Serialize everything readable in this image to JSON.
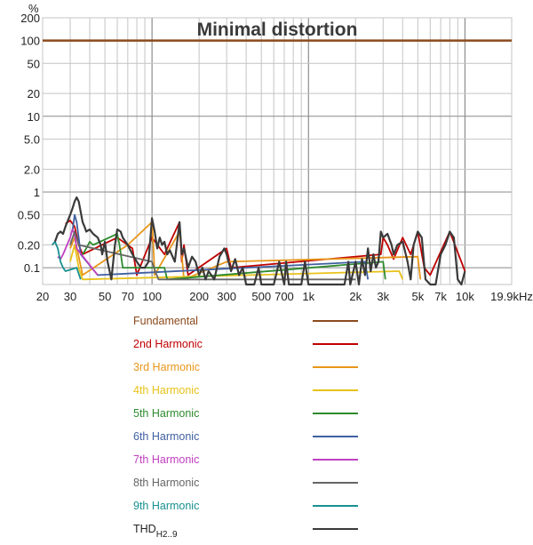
{
  "chart_data": {
    "type": "line",
    "title": "Minimal distortion",
    "ylabel": "%",
    "xlabel": "",
    "x_scale": "log",
    "y_scale": "log",
    "xlim": [
      20,
      19900
    ],
    "ylim": [
      0.06,
      200
    ],
    "x_ticks": [
      {
        "value": 20,
        "label": "20"
      },
      {
        "value": 30,
        "label": "30"
      },
      {
        "value": 50,
        "label": "50"
      },
      {
        "value": 70,
        "label": "70"
      },
      {
        "value": 100,
        "label": "100"
      },
      {
        "value": 200,
        "label": "200"
      },
      {
        "value": 300,
        "label": "300"
      },
      {
        "value": 500,
        "label": "500"
      },
      {
        "value": 700,
        "label": "700"
      },
      {
        "value": 1000,
        "label": "1k"
      },
      {
        "value": 2000,
        "label": "2k"
      },
      {
        "value": 3000,
        "label": "3k"
      },
      {
        "value": 5000,
        "label": "5k"
      },
      {
        "value": 7000,
        "label": "7k"
      },
      {
        "value": 10000,
        "label": "10k"
      },
      {
        "value": 19900,
        "label": "19.9kHz"
      }
    ],
    "y_ticks": [
      {
        "value": 200,
        "label": "200"
      },
      {
        "value": 100,
        "label": "100"
      },
      {
        "value": 50,
        "label": "50"
      },
      {
        "value": 20,
        "label": "20"
      },
      {
        "value": 10,
        "label": "10"
      },
      {
        "value": 5,
        "label": "5.0"
      },
      {
        "value": 2,
        "label": "2.0"
      },
      {
        "value": 1,
        "label": "1"
      },
      {
        "value": 0.5,
        "label": "0.50"
      },
      {
        "value": 0.2,
        "label": "0.20"
      },
      {
        "value": 0.1,
        "label": "0.1"
      }
    ],
    "grid": true,
    "legend_position": "below",
    "series": [
      {
        "name": "Fundamental",
        "color": "#8b4a1c",
        "x": [
          20,
          19900
        ],
        "y": [
          100,
          100
        ]
      },
      {
        "name": "2nd Harmonic",
        "color": "#c00000",
        "x": [
          28,
          30,
          32,
          34,
          36,
          60,
          75,
          80,
          100,
          120,
          150,
          155,
          160,
          170,
          300,
          320,
          2900,
          3000,
          3200,
          3500,
          4000,
          4500,
          5000,
          5500,
          6000,
          8000,
          10000
        ],
        "y": [
          0.38,
          0.42,
          0.35,
          0.2,
          0.15,
          0.25,
          0.18,
          0.08,
          0.25,
          0.15,
          0.4,
          0.12,
          0.2,
          0.08,
          0.18,
          0.1,
          0.15,
          0.25,
          0.2,
          0.13,
          0.25,
          0.15,
          0.3,
          0.1,
          0.08,
          0.3,
          0.09
        ]
      },
      {
        "name": "3rd Harmonic",
        "color": "#e8961a",
        "x": [
          30,
          32,
          34,
          36,
          70,
          100,
          102,
          104,
          150,
          155,
          160,
          300,
          5000,
          5200
        ],
        "y": [
          0.18,
          0.25,
          0.14,
          0.08,
          0.2,
          0.4,
          0.2,
          0.08,
          0.3,
          0.15,
          0.07,
          0.12,
          0.14,
          0.07
        ]
      },
      {
        "name": "4th Harmonic",
        "color": "#e8c21a",
        "x": [
          30,
          32,
          34,
          36,
          3800,
          4000
        ],
        "y": [
          0.12,
          0.2,
          0.1,
          0.07,
          0.09,
          0.07
        ]
      },
      {
        "name": "5th Harmonic",
        "color": "#2e8b2e",
        "x": [
          36,
          38,
          40,
          42,
          60,
          62,
          65,
          120,
          125,
          3000,
          3100
        ],
        "y": [
          0.15,
          0.18,
          0.22,
          0.2,
          0.28,
          0.2,
          0.1,
          0.1,
          0.07,
          0.12,
          0.07
        ]
      },
      {
        "name": "6th Harmonic",
        "color": "#4060a0",
        "x": [
          31,
          32,
          33,
          34,
          35,
          45,
          2300,
          2400
        ],
        "y": [
          0.3,
          0.5,
          0.4,
          0.25,
          0.15,
          0.08,
          0.12,
          0.07
        ]
      },
      {
        "name": "7th Harmonic",
        "color": "#c040c0",
        "x": [
          25,
          26,
          27,
          30,
          31,
          32,
          33,
          45
        ],
        "y": [
          0.14,
          0.13,
          0.15,
          0.25,
          0.32,
          0.28,
          0.18,
          0.08
        ]
      },
      {
        "name": "8th Harmonic",
        "color": "#666666",
        "x": [
          30,
          32,
          34,
          100,
          105,
          110,
          2000
        ],
        "y": [
          0.2,
          0.3,
          0.2,
          0.12,
          0.09,
          0.07,
          0.07
        ]
      },
      {
        "name": "9th Harmonic",
        "color": "#1a9090",
        "x": [
          23,
          24,
          25,
          26,
          27,
          28,
          33,
          35
        ],
        "y": [
          0.2,
          0.22,
          0.18,
          0.12,
          0.1,
          0.09,
          0.1,
          0.07
        ]
      },
      {
        "name": "THD H2..9",
        "color": "#3a3a3a",
        "x": [
          24,
          25,
          26,
          27,
          28,
          29,
          30,
          31,
          32,
          33,
          34,
          35,
          36,
          37,
          38,
          40,
          42,
          45,
          47,
          48,
          50,
          52,
          55,
          58,
          60,
          63,
          65,
          70,
          75,
          80,
          85,
          90,
          95,
          100,
          104,
          108,
          112,
          116,
          120,
          125,
          130,
          140,
          150,
          155,
          160,
          170,
          180,
          190,
          200,
          210,
          220,
          230,
          250,
          270,
          290,
          300,
          320,
          340,
          360,
          380,
          400,
          450,
          480,
          500,
          520,
          600,
          650,
          700,
          720,
          750,
          900,
          950,
          1000,
          1050,
          1700,
          1800,
          1850,
          2000,
          2100,
          2200,
          2300,
          2400,
          2500,
          2600,
          2700,
          2800,
          2900,
          3000,
          3200,
          3400,
          3500,
          3700,
          4000,
          4300,
          4500,
          4700,
          5000,
          5300,
          5600,
          6000,
          6500,
          7000,
          7500,
          8000,
          8500,
          9000,
          9500,
          10000
        ],
        "y": [
          0.22,
          0.28,
          0.3,
          0.28,
          0.35,
          0.42,
          0.5,
          0.6,
          0.75,
          0.85,
          0.75,
          0.55,
          0.4,
          0.35,
          0.3,
          0.32,
          0.28,
          0.25,
          0.2,
          0.15,
          0.22,
          0.12,
          0.07,
          0.2,
          0.32,
          0.3,
          0.25,
          0.2,
          0.15,
          0.12,
          0.1,
          0.1,
          0.12,
          0.45,
          0.3,
          0.18,
          0.25,
          0.2,
          0.22,
          0.15,
          0.17,
          0.12,
          0.4,
          0.15,
          0.18,
          0.1,
          0.14,
          0.12,
          0.08,
          0.1,
          0.07,
          0.09,
          0.07,
          0.14,
          0.18,
          0.15,
          0.09,
          0.13,
          0.08,
          0.1,
          0.06,
          0.06,
          0.1,
          0.06,
          0.06,
          0.06,
          0.12,
          0.06,
          0.12,
          0.06,
          0.06,
          0.12,
          0.06,
          0.06,
          0.06,
          0.12,
          0.06,
          0.12,
          0.06,
          0.13,
          0.08,
          0.18,
          0.09,
          0.15,
          0.1,
          0.12,
          0.3,
          0.25,
          0.28,
          0.2,
          0.15,
          0.2,
          0.22,
          0.12,
          0.07,
          0.2,
          0.3,
          0.25,
          0.07,
          0.06,
          0.06,
          0.15,
          0.2,
          0.3,
          0.25,
          0.07,
          0.06,
          0.09
        ]
      }
    ],
    "legend": [
      {
        "label": "Fundamental",
        "color": "#8b4a1c"
      },
      {
        "label": "2nd Harmonic",
        "color": "#c00000"
      },
      {
        "label": "3rd Harmonic",
        "color": "#e8961a"
      },
      {
        "label": "4th Harmonic",
        "color": "#e8c21a"
      },
      {
        "label": "5th Harmonic",
        "color": "#2e8b2e"
      },
      {
        "label": "6th Harmonic",
        "color": "#4060a0"
      },
      {
        "label": "7th Harmonic",
        "color": "#c040c0"
      },
      {
        "label": "8th Harmonic",
        "color": "#666666"
      },
      {
        "label": "9th Harmonic",
        "color": "#1a9090"
      },
      {
        "label": "THD",
        "sub": "H2..9",
        "color": "#3a3a3a"
      }
    ]
  }
}
